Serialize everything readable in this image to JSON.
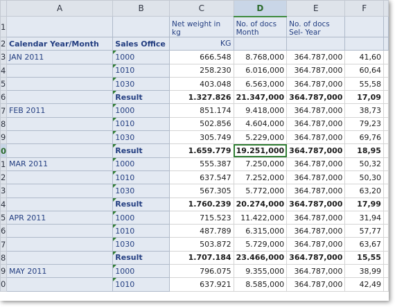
{
  "columns": [
    "",
    "A",
    "B",
    "C",
    "D",
    "E",
    "F",
    ""
  ],
  "selected_column": "D",
  "header_row1": {
    "row": "1",
    "a": "",
    "b": "",
    "c": "Net weight in kg",
    "d": "No. of docs Month",
    "e": "No. of docs Sel- Year",
    "f": ""
  },
  "header_row2": {
    "row": "2",
    "a": "Calendar Year/Month",
    "b": "Sales Office",
    "c": "KG",
    "d": "",
    "e": "",
    "f": ""
  },
  "rows": [
    {
      "row": "3",
      "a": "JAN 2011",
      "b": "1000",
      "c": "666.548",
      "d": "8.768,000",
      "e": "364.787,000",
      "f": "41,60",
      "result": false
    },
    {
      "row": "4",
      "a": "",
      "b": "1010",
      "c": "258.230",
      "d": "6.016,000",
      "e": "364.787,000",
      "f": "60,64",
      "result": false
    },
    {
      "row": "5",
      "a": "",
      "b": "1030",
      "c": "403.048",
      "d": "6.563,000",
      "e": "364.787,000",
      "f": "55,58",
      "result": false
    },
    {
      "row": "6",
      "a": "",
      "b": "Result",
      "c": "1.327.826",
      "d": "21.347,000",
      "e": "364.787,000",
      "f": "17,09",
      "result": true
    },
    {
      "row": "7",
      "a": "FEB 2011",
      "b": "1000",
      "c": "851.174",
      "d": "9.418,000",
      "e": "364.787,000",
      "f": "38,73",
      "result": false
    },
    {
      "row": "8",
      "a": "",
      "b": "1010",
      "c": "502.856",
      "d": "4.604,000",
      "e": "364.787,000",
      "f": "79,23",
      "result": false
    },
    {
      "row": "9",
      "a": "",
      "b": "1030",
      "c": "305.749",
      "d": "5.229,000",
      "e": "364.787,000",
      "f": "69,76",
      "result": false
    },
    {
      "row": "0",
      "a": "",
      "b": "Result",
      "c": "1.659.779",
      "d": "19.251,000",
      "e": "364.787,000",
      "f": "18,95",
      "result": true,
      "selected": true
    },
    {
      "row": "1",
      "a": "MAR 2011",
      "b": "1000",
      "c": "555.387",
      "d": "7.250,000",
      "e": "364.787,000",
      "f": "50,32",
      "result": false
    },
    {
      "row": "2",
      "a": "",
      "b": "1010",
      "c": "637.547",
      "d": "7.252,000",
      "e": "364.787,000",
      "f": "50,30",
      "result": false
    },
    {
      "row": "3",
      "a": "",
      "b": "1030",
      "c": "567.305",
      "d": "5.772,000",
      "e": "364.787,000",
      "f": "63,20",
      "result": false
    },
    {
      "row": "4",
      "a": "",
      "b": "Result",
      "c": "1.760.239",
      "d": "20.274,000",
      "e": "364.787,000",
      "f": "17,99",
      "result": true
    },
    {
      "row": "5",
      "a": "APR 2011",
      "b": "1000",
      "c": "715.523",
      "d": "11.422,000",
      "e": "364.787,000",
      "f": "31,94",
      "result": false
    },
    {
      "row": "6",
      "a": "",
      "b": "1010",
      "c": "487.789",
      "d": "6.315,000",
      "e": "364.787,000",
      "f": "57,77",
      "result": false
    },
    {
      "row": "7",
      "a": "",
      "b": "1030",
      "c": "503.872",
      "d": "5.729,000",
      "e": "364.787,000",
      "f": "63,67",
      "result": false
    },
    {
      "row": "8",
      "a": "",
      "b": "Result",
      "c": "1.707.184",
      "d": "23.466,000",
      "e": "364.787,000",
      "f": "15,55",
      "result": true
    },
    {
      "row": "9",
      "a": "MAY 2011",
      "b": "1000",
      "c": "796.075",
      "d": "9.355,000",
      "e": "364.787,000",
      "f": "38,99",
      "result": false
    },
    {
      "row": "0",
      "a": "",
      "b": "1010",
      "c": "637.921",
      "d": "8.585,000",
      "e": "364.787,000",
      "f": "42,49",
      "result": false
    }
  ]
}
